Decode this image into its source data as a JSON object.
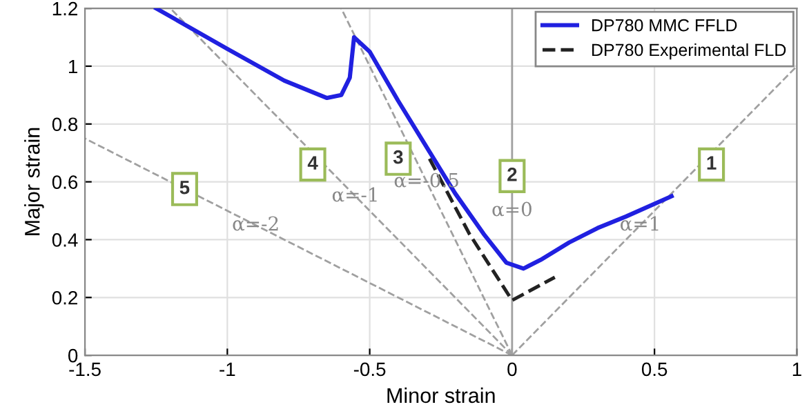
{
  "chart_data": {
    "type": "line",
    "xlabel": "Minor strain",
    "ylabel": "Major strain",
    "xlim": [
      -1.5,
      1
    ],
    "ylim": [
      0,
      1.2
    ],
    "xticks": [
      -1.5,
      -1,
      -0.5,
      0,
      0.5,
      1
    ],
    "yticks": [
      0,
      0.2,
      0.4,
      0.6,
      0.8,
      1,
      1.2
    ],
    "grid": true,
    "legend": "top right",
    "series": [
      {
        "name": "DP780 MMC FFLD",
        "color": "#2020e0",
        "line_style": "solid",
        "x": [
          -1.25,
          -1.0,
          -0.8,
          -0.65,
          -0.6,
          -0.57,
          -0.555,
          -0.5,
          -0.4,
          -0.3,
          -0.2,
          -0.1,
          -0.02,
          0.04,
          0.1,
          0.2,
          0.3,
          0.4,
          0.56
        ],
        "values": [
          1.2,
          1.06,
          0.95,
          0.89,
          0.9,
          0.96,
          1.1,
          1.05,
          0.88,
          0.72,
          0.56,
          0.42,
          0.32,
          0.3,
          0.33,
          0.39,
          0.44,
          0.48,
          0.55
        ]
      },
      {
        "name": "DP780 Experimental FLD",
        "color": "#222222",
        "line_style": "dashed",
        "x": [
          -0.29,
          -0.15,
          0.0,
          0.15
        ],
        "values": [
          0.68,
          0.42,
          0.19,
          0.27
        ]
      },
      {
        "color": "#a0a0a0",
        "line_style": "dashed",
        "x": [
          0,
          1
        ],
        "values": [
          0,
          1
        ]
      },
      {
        "color": "#a0a0a0",
        "line_style": "dashed",
        "x": [
          0,
          -0.6
        ],
        "values": [
          0,
          1.2
        ]
      },
      {
        "color": "#a0a0a0",
        "line_style": "dashed",
        "x": [
          0,
          -1.2
        ],
        "values": [
          0,
          1.2
        ]
      },
      {
        "color": "#a0a0a0",
        "line_style": "dashed",
        "x": [
          0,
          -1.5
        ],
        "values": [
          0,
          0.75
        ]
      }
    ],
    "ref_lines": [
      {
        "axis": "x",
        "value": 0,
        "color": "#a0a0a0",
        "line_style": "solid"
      }
    ],
    "annotations": [
      {
        "text": "1",
        "x": 0.7,
        "y": 0.66
      },
      {
        "text": "α=1",
        "x": 0.45,
        "y": 0.45
      },
      {
        "text": "2",
        "x": 0.0,
        "y": 0.62
      },
      {
        "text": "α=0",
        "x": 0.0,
        "y": 0.5
      },
      {
        "text": "3",
        "x": -0.4,
        "y": 0.68
      },
      {
        "text": "α=-0.5",
        "x": -0.3,
        "y": 0.6
      },
      {
        "text": "4",
        "x": -0.7,
        "y": 0.66
      },
      {
        "text": "α=-1",
        "x": -0.55,
        "y": 0.55
      },
      {
        "text": "5",
        "x": -1.15,
        "y": 0.575
      },
      {
        "text": "α=-2",
        "x": -0.9,
        "y": 0.45
      }
    ]
  }
}
